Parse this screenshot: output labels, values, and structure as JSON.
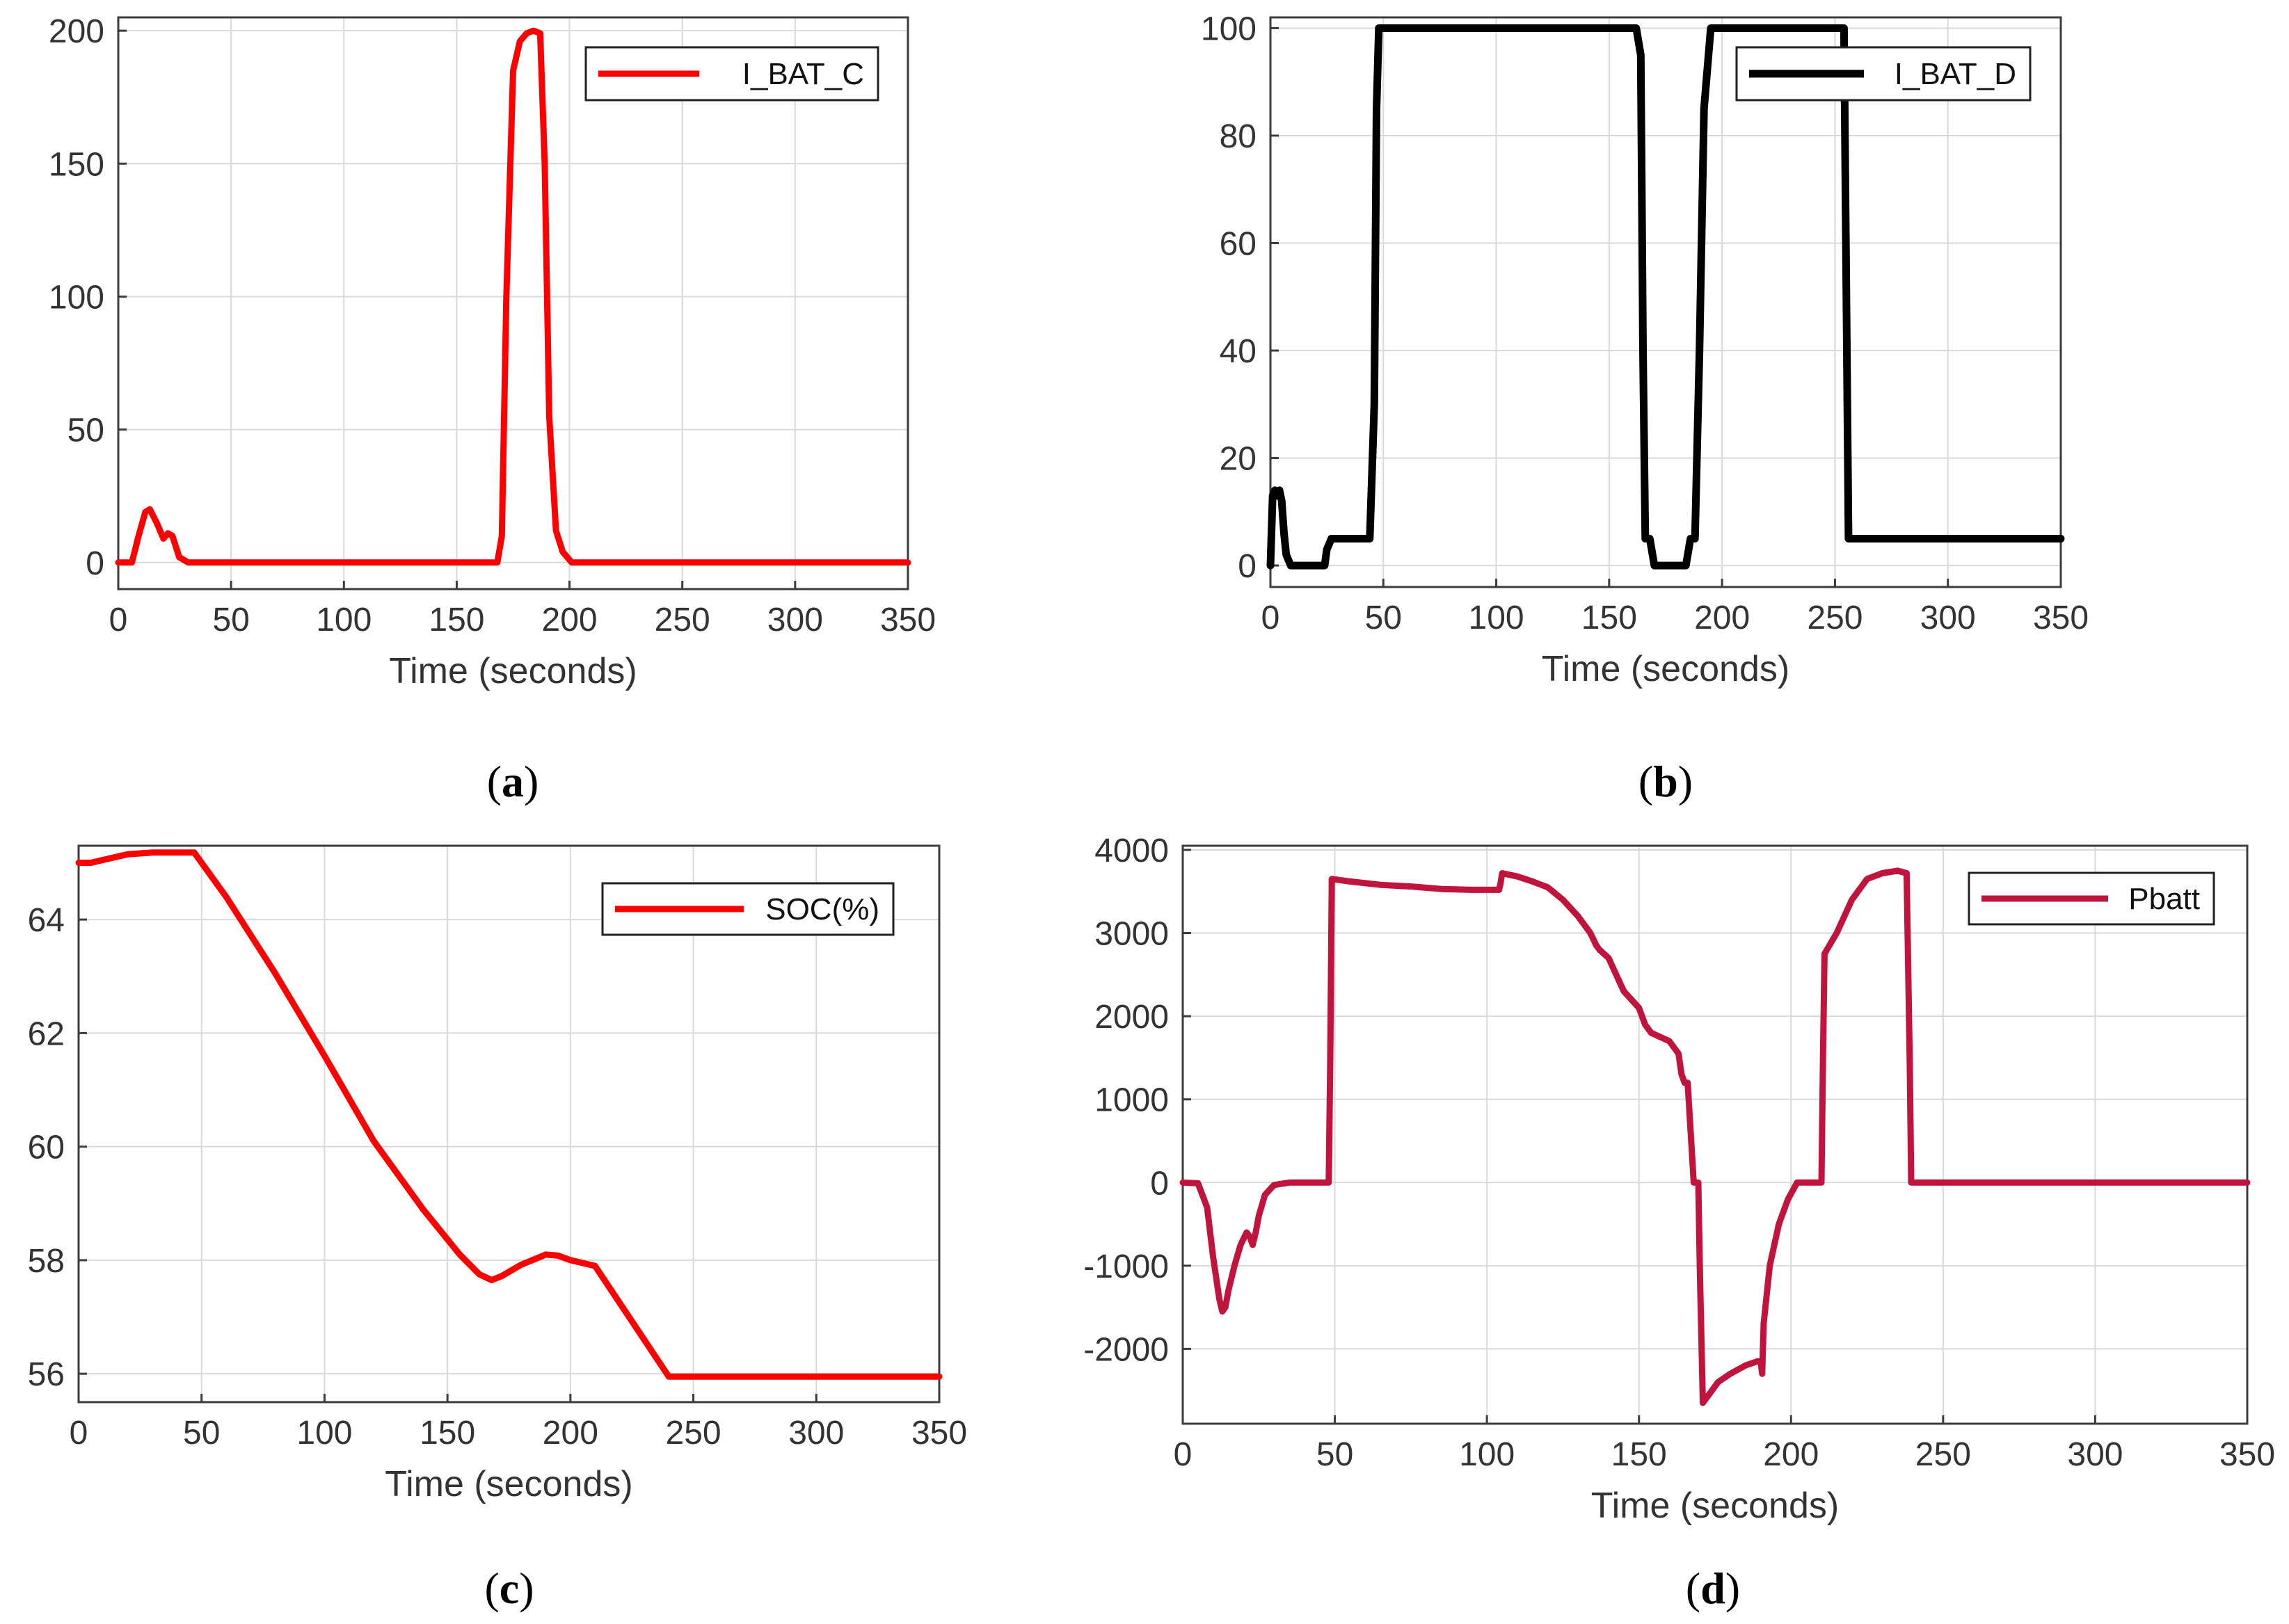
{
  "chart_data": [
    {
      "type": "line",
      "xlabel": "Time (seconds)",
      "ylabel": "",
      "xlim": [
        0,
        350
      ],
      "ylim": [
        -10,
        205
      ],
      "xticks": [
        0,
        50,
        100,
        150,
        200,
        250,
        300,
        350
      ],
      "yticks": [
        0,
        50,
        100,
        150,
        200
      ],
      "grid": true,
      "legend_position": "top-right",
      "caption": {
        "open": "(",
        "letter": "a",
        "close": ")"
      },
      "series": [
        {
          "name": "I_BAT_C",
          "color": "#ff0000",
          "x": [
            0,
            6,
            9,
            12,
            14,
            17,
            20,
            22,
            24,
            27,
            31,
            40,
            100,
            168,
            170,
            172,
            175,
            178,
            181,
            184,
            187,
            189,
            191,
            194,
            197,
            201,
            210,
            300,
            350
          ],
          "y": [
            0,
            0,
            10,
            19,
            20,
            15,
            9,
            11,
            10,
            2,
            0,
            0,
            0,
            0,
            10,
            100,
            185,
            196,
            199,
            200,
            199,
            150,
            55,
            12,
            4,
            0,
            0,
            0,
            0
          ]
        }
      ]
    },
    {
      "type": "line",
      "xlabel": "Time (seconds)",
      "ylabel": "",
      "xlim": [
        0,
        350
      ],
      "ylim": [
        -4,
        102
      ],
      "xticks": [
        0,
        50,
        100,
        150,
        200,
        250,
        300,
        350
      ],
      "yticks": [
        0,
        20,
        40,
        60,
        80,
        100
      ],
      "grid": true,
      "legend_position": "top-right",
      "caption": {
        "open": "(",
        "letter": "b",
        "close": ")"
      },
      "series": [
        {
          "name": "I_BAT_D",
          "color": "#000000",
          "x": [
            0,
            1,
            2,
            3,
            4,
            5,
            6,
            7,
            9,
            24,
            25,
            27,
            44,
            46,
            47,
            48,
            162,
            164,
            165,
            166,
            168,
            170,
            172,
            184,
            186,
            188,
            190,
            192,
            195,
            198,
            254,
            256,
            258,
            350
          ],
          "y": [
            0,
            13,
            14,
            13,
            14,
            12,
            6,
            2,
            0,
            0,
            3,
            5,
            5,
            30,
            85,
            100,
            100,
            95,
            40,
            5,
            5,
            0,
            0,
            0,
            5,
            5,
            40,
            85,
            100,
            100,
            100,
            5,
            5,
            5
          ]
        }
      ]
    },
    {
      "type": "line",
      "xlabel": "Time (seconds)",
      "ylabel": "",
      "xlim": [
        0,
        350
      ],
      "ylim": [
        55.5,
        65.3
      ],
      "xticks": [
        0,
        50,
        100,
        150,
        200,
        250,
        300,
        350
      ],
      "yticks": [
        56,
        58,
        60,
        62,
        64
      ],
      "grid": true,
      "legend_position": "top-right",
      "caption": {
        "open": "(",
        "letter": "c",
        "close": ")"
      },
      "series": [
        {
          "name": "SOC(%)",
          "color": "#ff0000",
          "x": [
            0,
            5,
            10,
            20,
            30,
            40,
            47,
            60,
            80,
            100,
            120,
            140,
            155,
            163,
            168,
            172,
            180,
            190,
            195,
            200,
            210,
            220,
            230,
            240,
            250,
            300,
            350
          ],
          "y": [
            65.0,
            65.0,
            65.05,
            65.15,
            65.18,
            65.18,
            65.18,
            64.4,
            63.05,
            61.6,
            60.1,
            58.9,
            58.1,
            57.75,
            57.65,
            57.72,
            57.92,
            58.1,
            58.08,
            58.0,
            57.9,
            57.25,
            56.6,
            55.95,
            55.95,
            55.95,
            55.95
          ]
        }
      ]
    },
    {
      "type": "line",
      "xlabel": "Time (seconds)",
      "ylabel": "",
      "xlim": [
        0,
        350
      ],
      "ylim": [
        -2900,
        4050
      ],
      "xticks": [
        0,
        50,
        100,
        150,
        200,
        250,
        300,
        350
      ],
      "yticks": [
        -2000,
        -1000,
        0,
        1000,
        2000,
        3000,
        4000
      ],
      "grid": true,
      "legend_position": "top-right",
      "caption": {
        "open": "(",
        "letter": "d",
        "close": ")"
      },
      "series": [
        {
          "name": "Pbatt",
          "color": "#c0143c",
          "x": [
            0,
            5,
            8,
            10,
            12,
            13,
            14,
            15,
            17,
            19,
            21,
            22,
            23,
            24,
            25,
            27,
            30,
            35,
            40,
            48,
            48.5,
            49,
            55,
            65,
            75,
            85,
            95,
            104,
            104.5,
            105,
            110,
            115,
            120,
            125,
            130,
            134,
            136,
            137,
            140,
            145,
            150,
            152,
            154,
            160,
            163,
            164,
            165,
            166,
            168,
            169.5,
            170,
            171,
            173,
            176,
            180,
            185,
            189,
            190,
            190.5,
            191,
            193,
            196,
            199,
            202,
            206,
            210,
            210.5,
            211,
            215,
            220,
            225,
            230,
            235,
            238,
            239,
            239.5,
            240,
            250,
            300,
            350
          ],
          "y": [
            0,
            -10,
            -300,
            -900,
            -1400,
            -1550,
            -1500,
            -1300,
            -1000,
            -750,
            -600,
            -650,
            -750,
            -600,
            -400,
            -150,
            -30,
            0,
            0,
            0,
            1500,
            3650,
            3620,
            3580,
            3560,
            3530,
            3520,
            3520,
            3600,
            3720,
            3680,
            3620,
            3550,
            3400,
            3200,
            3000,
            2850,
            2800,
            2700,
            2300,
            2100,
            1900,
            1800,
            1700,
            1550,
            1300,
            1200,
            1200,
            0,
            0,
            -1000,
            -2650,
            -2550,
            -2400,
            -2300,
            -2200,
            -2150,
            -2150,
            -2300,
            -1700,
            -1000,
            -500,
            -200,
            0,
            0,
            0,
            1500,
            2750,
            3000,
            3400,
            3650,
            3720,
            3750,
            3720,
            1500,
            0,
            0,
            0,
            0,
            0
          ]
        }
      ]
    }
  ]
}
